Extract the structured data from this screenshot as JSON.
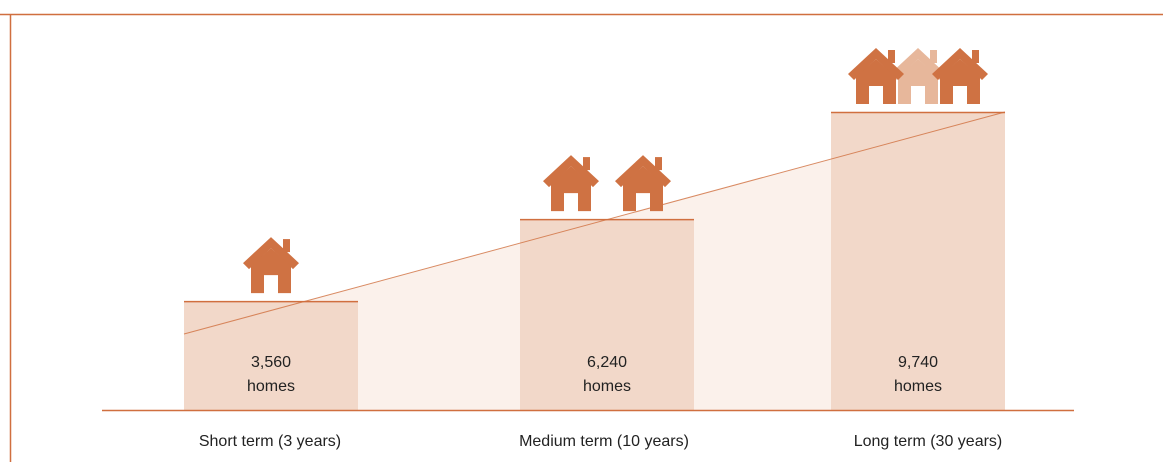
{
  "colors": {
    "accent": "#d06f3f",
    "bar_fill": "#f2d8c9",
    "trend_fill": "#fbf1eb",
    "house_fill": "#cf7243",
    "house_fill_light": "#e7b79b",
    "frame": "#d06f3f",
    "text": "#222222",
    "background": "#ffffff"
  },
  "chart_data": {
    "type": "bar",
    "title": "",
    "xlabel": "",
    "ylabel": "",
    "categories": [
      "Short term (3 years)",
      "Medium term (10 years)",
      "Long term (30 years)"
    ],
    "values": [
      3560,
      6240,
      9740
    ],
    "value_labels": [
      "3,560",
      "6,240",
      "9,740"
    ],
    "unit_label": "homes",
    "house_counts": [
      1,
      2,
      2.5
    ],
    "ylim": [
      0,
      9740
    ],
    "grid": false,
    "legend": "none"
  }
}
